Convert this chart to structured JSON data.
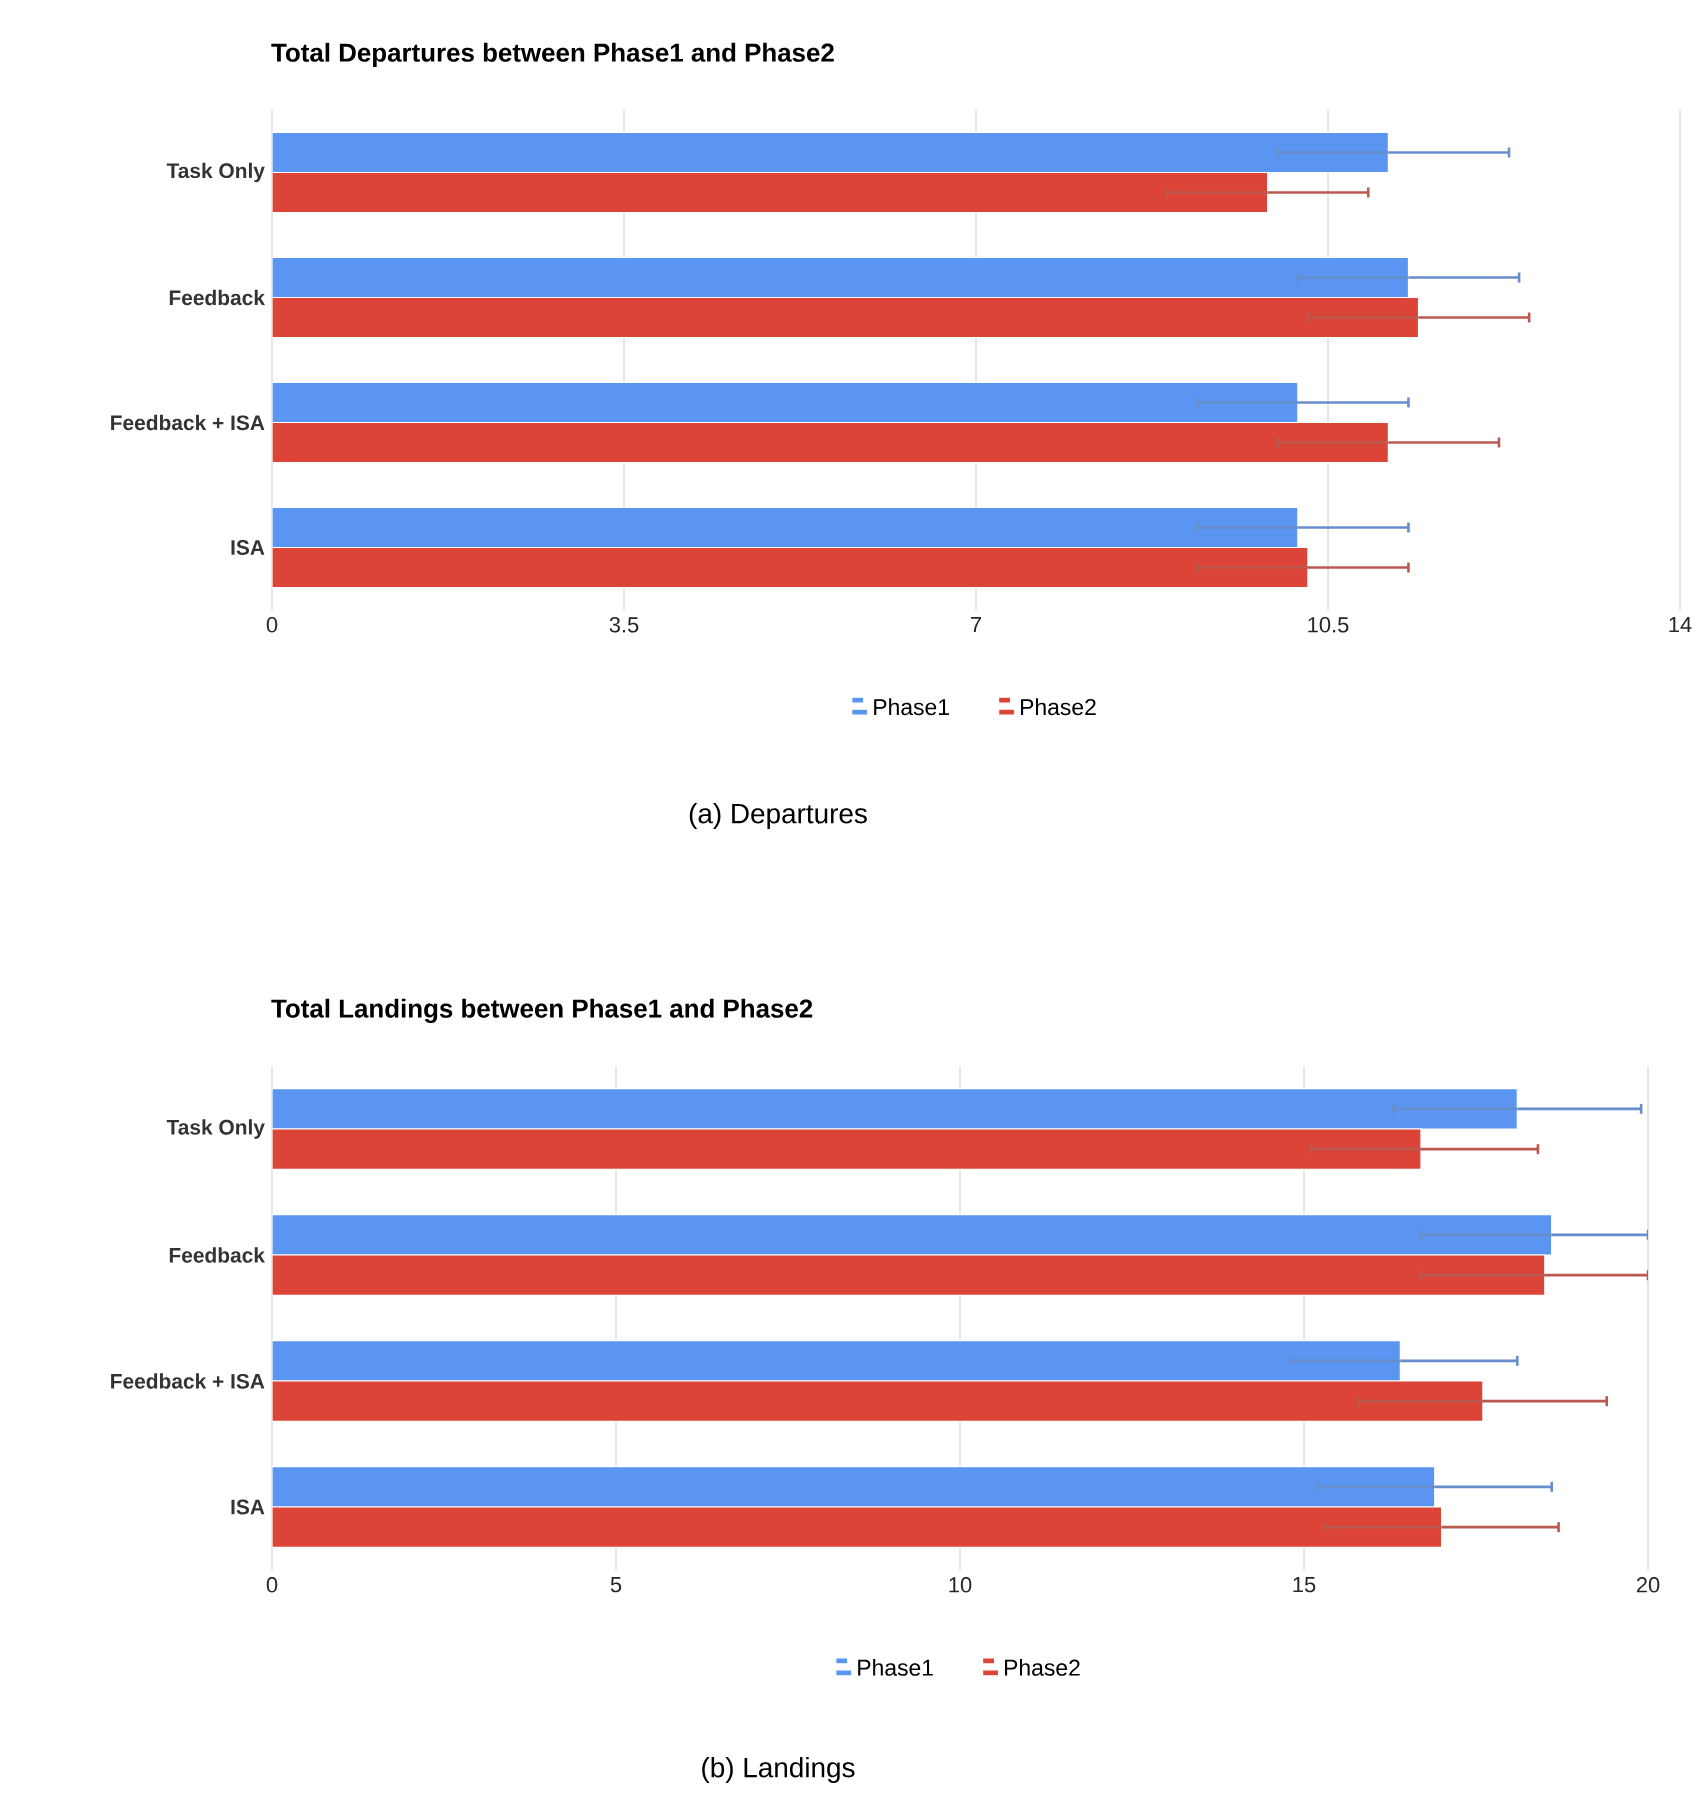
{
  "chart_data": [
    {
      "type": "bar",
      "orientation": "horizontal",
      "title": "Total Departures between Phase1 and Phase2",
      "categories": [
        "Task Only",
        "Feedback",
        "Feedback + ISA",
        "ISA"
      ],
      "series": [
        {
          "name": "Phase1",
          "color": "#5b95f2",
          "values": [
            11.1,
            11.3,
            10.2,
            10.2
          ],
          "errors": [
            [
              10.0,
              12.3
            ],
            [
              10.2,
              12.4
            ],
            [
              9.2,
              11.3
            ],
            [
              9.2,
              11.3
            ]
          ]
        },
        {
          "name": "Phase2",
          "color": "#db4437",
          "values": [
            9.9,
            11.4,
            11.1,
            10.3
          ],
          "errors": [
            [
              8.9,
              10.9
            ],
            [
              10.3,
              12.5
            ],
            [
              10.0,
              12.2
            ],
            [
              9.2,
              11.3
            ]
          ]
        }
      ],
      "xlim": [
        0,
        14
      ],
      "xticks": [
        0,
        3.5,
        7,
        10.5,
        14
      ],
      "grid": "x",
      "legend": "bottom",
      "annotations": [
        "(a) Departures"
      ]
    },
    {
      "type": "bar",
      "orientation": "horizontal",
      "title": "Total Landings between Phase1 and Phase2",
      "categories": [
        "Task Only",
        "Feedback",
        "Feedback + ISA",
        "ISA"
      ],
      "series": [
        {
          "name": "Phase1",
          "color": "#5b95f2",
          "values": [
            18.1,
            18.6,
            16.4,
            16.9
          ],
          "errors": [
            [
              16.3,
              19.9
            ],
            [
              16.7,
              20
            ],
            [
              14.8,
              18.1
            ],
            [
              15.2,
              18.6
            ]
          ]
        },
        {
          "name": "Phase2",
          "color": "#db4437",
          "values": [
            16.7,
            18.5,
            17.6,
            17.0
          ],
          "errors": [
            [
              15.1,
              18.4
            ],
            [
              16.7,
              20
            ],
            [
              15.8,
              19.4
            ],
            [
              15.3,
              18.7
            ]
          ]
        }
      ],
      "xlim": [
        0,
        20
      ],
      "xticks": [
        0,
        5,
        10,
        15,
        20
      ],
      "grid": "x",
      "legend": "bottom",
      "annotations": [
        "(b) Landings"
      ]
    }
  ]
}
